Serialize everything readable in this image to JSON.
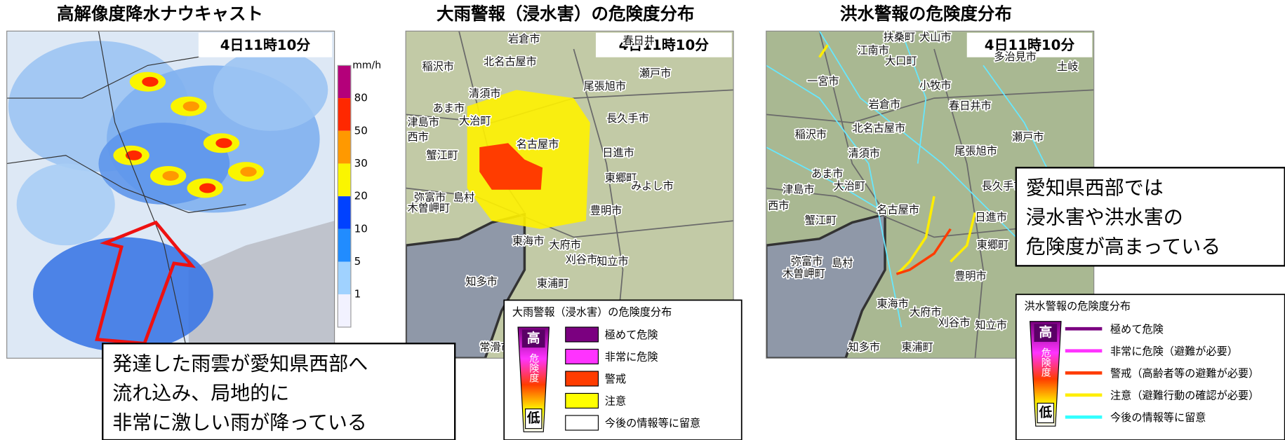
{
  "panels": [
    {
      "title": "高解像度降水ナウキャスト",
      "time": "4日11時10分",
      "scale": {
        "unit": "mm/h",
        "ticks": [
          80,
          50,
          30,
          20,
          10,
          5,
          1
        ],
        "colors": [
          "#b4007a",
          "#ff2800",
          "#ff9900",
          "#faf500",
          "#0041ff",
          "#218cff",
          "#a0d2ff",
          "#f2f2ff"
        ]
      },
      "callout": [
        "発達した雨雲が愛知県西部へ",
        "流れ込み、局地的に",
        "非常に激しい雨が降っている"
      ]
    },
    {
      "title": "大雨警報（浸水害）の危険度分布",
      "time": "4日11時10分",
      "cities": [
        "岩倉市",
        "春日井",
        "稲沢市",
        "北名古屋市",
        "瀬戸市",
        "清須市",
        "尾張旭市",
        "あま市",
        "大治町",
        "津島市",
        "長久手市",
        "西市",
        "名古屋市",
        "日進市",
        "蟹江町",
        "東郷町",
        "みよし市",
        "弥富市",
        "島村",
        "木曽岬町",
        "豊明市",
        "東海市",
        "大府市",
        "刈谷市",
        "知立市",
        "知多市",
        "東浦町",
        "常滑市"
      ],
      "legend": {
        "title": "大雨警報（浸水害）の危険度分布",
        "high": "高",
        "mid": "危険度",
        "low": "低",
        "items": [
          {
            "label": "極めて危険",
            "color": "#7b0080"
          },
          {
            "label": "非常に危険",
            "color": "#ff33ff"
          },
          {
            "label": "警戒",
            "color": "#ff3c00"
          },
          {
            "label": "注意",
            "color": "#ffff00"
          },
          {
            "label": "今後の情報等に留意",
            "color": "#ffffff"
          }
        ]
      }
    },
    {
      "title": "洪水警報の危険度分布",
      "time": "4日11時10分",
      "cities": [
        "扶桑町",
        "犬山市",
        "江南市",
        "大口町",
        "多治見市",
        "土岐",
        "一宮市",
        "小牧市",
        "岩倉市",
        "春日井市",
        "稲沢市",
        "北名古屋市",
        "瀬戸市",
        "清須市",
        "尾張旭市",
        "あま市",
        "大治町",
        "津島市",
        "長久手市",
        "西市",
        "名古屋市",
        "日進市",
        "蟹江町",
        "東郷町",
        "弥富市",
        "島村",
        "木曽岬町",
        "豊明市",
        "東海市",
        "大府市",
        "刈谷市",
        "知立市",
        "知多市",
        "東浦町"
      ],
      "callout": [
        "愛知県西部では",
        "浸水害や洪水害の",
        "危険度が高まっている"
      ],
      "legend": {
        "title": "洪水警報の危険度分布",
        "high": "高",
        "mid": "危険度",
        "low": "低",
        "items": [
          {
            "label": "極めて危険",
            "color": "#7b0080"
          },
          {
            "label": "非常に危険（避難が必要）",
            "color": "#ff33ff"
          },
          {
            "label": "警戒（高齢者等の避難が必要）",
            "color": "#ff3c00"
          },
          {
            "label": "注意（避難行動の確認が必要）",
            "color": "#ffee00"
          },
          {
            "label": "今後の情報等に留意",
            "color": "#33ffff"
          }
        ]
      }
    }
  ]
}
